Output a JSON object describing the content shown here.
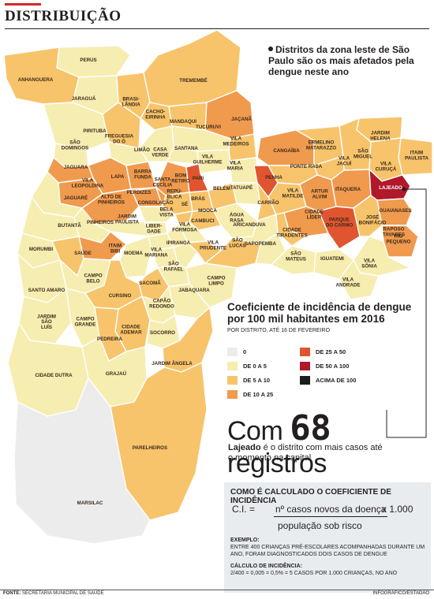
{
  "header": {
    "title": "DISTRIBUIÇÃO"
  },
  "note": "Distritos da zona leste de São Paulo são os mais afetados pela dengue neste ano",
  "legend": {
    "title": "Coeficiente de incidência de dengue por 100 mil habitantes em 2016",
    "subtitle": "POR DISTRITO, ATÉ 16 DE FEVEREIRO",
    "items": [
      {
        "label": "0",
        "color": "#ececec"
      },
      {
        "label": "DE 0 A 5",
        "color": "#f6edb0"
      },
      {
        "label": "DE 5 A 10",
        "color": "#f7c46b"
      },
      {
        "label": "DE 10 A 25",
        "color": "#f09a4e"
      },
      {
        "label": "DE 25 A 50",
        "color": "#e0552f"
      },
      {
        "label": "DE 50 A 100",
        "color": "#b0192a"
      },
      {
        "label": "ACIMA DE 100",
        "color": "#1c1c1c"
      }
    ]
  },
  "highlight": {
    "big_prefix": "Com",
    "big_number": "68",
    "big_suffix": "registros",
    "district": "Lajeado",
    "text": "é o distrito com mais casos até o momento na capital"
  },
  "calc": {
    "title": "COMO É CALCULADO O COEFICIENTE DE INCIDÊNCIA",
    "lhs": "C.I. =",
    "numerator": "nº casos novos da doença",
    "multiplier": "x 1.000",
    "denominator": "população sob risco",
    "example_title": "EXEMPLO:",
    "example_text": "ENTRE 400 CRIANÇAS PRÉ-ESCOLARES ACOMPANHADAS DURANTE UM ANO, FORAM DIAGNOSTICADOS DOIS CASOS DE DENGUE",
    "calc_title": "CÁLCULO DE INCIDÊNCIA:",
    "calc_text": "2/400 = 0,005 = 0,5% = 5 CASOS POR 1.000 CRIANÇAS, NO ANO"
  },
  "footer": {
    "source_label": "FONTE:",
    "source": "SECRETARIA MUNICIPAL DE SAÚDE",
    "credit": "INFOGRÁFICO/ESTADÃO"
  },
  "districts": [
    {
      "name": "PERUS",
      "cls": "1-5"
    },
    {
      "name": "ANHANGUERA",
      "cls": "5-10"
    },
    {
      "name": "JARAGUÁ",
      "cls": "1-5"
    },
    {
      "name": "BRASI-\nLÂNDIA",
      "cls": "5-10"
    },
    {
      "name": "TREMEMBÉ",
      "cls": "5-10"
    },
    {
      "name": "CACHO-\nEIRINHA",
      "cls": "5-10"
    },
    {
      "name": "MANDAQUI",
      "cls": "5-10"
    },
    {
      "name": "JAÇANÃ",
      "cls": "10-25"
    },
    {
      "name": "PIRITUBA",
      "cls": "1-5"
    },
    {
      "name": "FREGUESIA\nDO Ó",
      "cls": "5-10"
    },
    {
      "name": "TUCURUVI",
      "cls": "1-5"
    },
    {
      "name": "VILA\nMEDEIROS",
      "cls": "5-10"
    },
    {
      "name": "SÃO\nDOMINGOS",
      "cls": "1-5"
    },
    {
      "name": "LIMÃO",
      "cls": "1-5"
    },
    {
      "name": "CASA\nVERDE",
      "cls": "1-5"
    },
    {
      "name": "SANTANA",
      "cls": "1-5"
    },
    {
      "name": "VILA\nGUILHERME",
      "cls": "1-5"
    },
    {
      "name": "VILA\nMARIA",
      "cls": "1-5"
    },
    {
      "name": "CANGAÍBA",
      "cls": "10-25"
    },
    {
      "name": "ERMELINO\nMATARAZZO",
      "cls": "5-10"
    },
    {
      "name": "JARDIM\nHELENA",
      "cls": "5-10"
    },
    {
      "name": "SÃO\nMIGUEL",
      "cls": "5-10"
    },
    {
      "name": "ITAIM\nPAULISTA",
      "cls": "5-10"
    },
    {
      "name": "VILA\nJACUÍ",
      "cls": "5-10"
    },
    {
      "name": "VILA\nCURUÇÁ",
      "cls": "5-10"
    },
    {
      "name": "JAGUARA",
      "cls": "10-25"
    },
    {
      "name": "LAPA",
      "cls": "10-25"
    },
    {
      "name": "BARRA\nFUNDA",
      "cls": "10-25"
    },
    {
      "name": "BOM\nRETIRO",
      "cls": "10-25"
    },
    {
      "name": "PARI",
      "cls": "25-50"
    },
    {
      "name": "PONTE RASA",
      "cls": "5-10"
    },
    {
      "name": "PENHA",
      "cls": "25-50"
    },
    {
      "name": "VILA\nLEOPOLDINA",
      "cls": "10-25"
    },
    {
      "name": "SANTA\nCECÍLIA",
      "cls": "10-25"
    },
    {
      "name": "JAGUARÉ",
      "cls": "1-5"
    },
    {
      "name": "ALTO DE\nPINHEIROS",
      "cls": "10-25"
    },
    {
      "name": "PERDIZES",
      "cls": "10-25"
    },
    {
      "name": "REPÚ-\nBLICA",
      "cls": "5-10"
    },
    {
      "name": "BRÁS",
      "cls": "5-10"
    },
    {
      "name": "BELÉM",
      "cls": "5-10"
    },
    {
      "name": "TATUAPÉ",
      "cls": "1-5"
    },
    {
      "name": "CARRÃO",
      "cls": "5-10"
    },
    {
      "name": "VILA\nMATILDE",
      "cls": "5-10"
    },
    {
      "name": "ARTUR\nALVIM",
      "cls": "10-25"
    },
    {
      "name": "ITAQUERA",
      "cls": "10-25"
    },
    {
      "name": "LAJEADO",
      "cls": "50-100"
    },
    {
      "name": "GUAIANASES",
      "cls": "10-25"
    },
    {
      "name": "CONSOLAÇÃO",
      "cls": "1-5"
    },
    {
      "name": "SÉ",
      "cls": "5-10"
    },
    {
      "name": "BELA\nVISTA",
      "cls": "1-5"
    },
    {
      "name": "MOOCA",
      "cls": "5-10"
    },
    {
      "name": "CAMBUCI",
      "cls": "1-5"
    },
    {
      "name": "ÁGUA\nRASA",
      "cls": "1-5"
    },
    {
      "name": "CIDADE\nLÍDER",
      "cls": "10-25"
    },
    {
      "name": "PARQUE\nDO CARMO",
      "cls": "25-50"
    },
    {
      "name": "JOSÉ\nBONIFÁCIO",
      "cls": "5-10"
    },
    {
      "name": "RIO\nPEQUENO",
      "cls": "10-25"
    },
    {
      "name": "BUTANTÃ",
      "cls": "1-5"
    },
    {
      "name": "PINHEIROS",
      "cls": "1-5"
    },
    {
      "name": "JARDIM\nPAULISTA",
      "cls": "1-5"
    },
    {
      "name": "LIBER-\nDADE",
      "cls": "1-5"
    },
    {
      "name": "VILA\nFORMOSA",
      "cls": "1-5"
    },
    {
      "name": "ARICANDUVA",
      "cls": "1-5"
    },
    {
      "name": "CIDADE\nTIRADENTES",
      "cls": "5-10"
    },
    {
      "name": "RAPOSO\nTAVARES",
      "cls": "10-25"
    },
    {
      "name": "MORUMBI",
      "cls": "1-5"
    },
    {
      "name": "ITAIM\nBIBI",
      "cls": "10-25"
    },
    {
      "name": "MOEMA",
      "cls": "1-5"
    },
    {
      "name": "VILA\nMARIANA",
      "cls": "1-5"
    },
    {
      "name": "IPIRANGA",
      "cls": "1-5"
    },
    {
      "name": "VILA\nPRUDENTE",
      "cls": "5-10"
    },
    {
      "name": "SÃO\nLUCAS",
      "cls": "5-10"
    },
    {
      "name": "SAPOPEMBA",
      "cls": "1-5"
    },
    {
      "name": "SÃO\nMATEUS",
      "cls": "1-5"
    },
    {
      "name": "IGUATEMI",
      "cls": "1-5"
    },
    {
      "name": "VILA\nSÔNIA",
      "cls": "1-5"
    },
    {
      "name": "SAÚDE",
      "cls": "5-10"
    },
    {
      "name": "SÃO\nRAFAEL",
      "cls": "1-5"
    },
    {
      "name": "VILA\nANDRADE",
      "cls": "1-5"
    },
    {
      "name": "CAMPO\nBELO",
      "cls": "1-5"
    },
    {
      "name": "SACOMÃ",
      "cls": "5-10"
    },
    {
      "name": "CAMPO\nLIMPO",
      "cls": "1-5"
    },
    {
      "name": "SANTO AMARO",
      "cls": "1-5"
    },
    {
      "name": "CURSINO",
      "cls": "5-10"
    },
    {
      "name": "JABAQUARA",
      "cls": "1-5"
    },
    {
      "name": "CAPÃO\nREDONDO",
      "cls": "1-5"
    },
    {
      "name": "JARDIM\nSÃO\nLUÍS",
      "cls": "1-5"
    },
    {
      "name": "CAMPO\nGRANDE",
      "cls": "1-5"
    },
    {
      "name": "CIDADE\nADEMAR",
      "cls": "5-10"
    },
    {
      "name": "SOCORRO",
      "cls": "1-5"
    },
    {
      "name": "PEDREIRA",
      "cls": "5-10"
    },
    {
      "name": "JARDIM ÂNGELA",
      "cls": "5-10"
    },
    {
      "name": "CIDADE DUTRA",
      "cls": "1-5"
    },
    {
      "name": "GRAJAÚ",
      "cls": "1-5"
    },
    {
      "name": "PARELHEIROS",
      "cls": "5-10"
    },
    {
      "name": "MARSILAC",
      "cls": "0"
    }
  ]
}
